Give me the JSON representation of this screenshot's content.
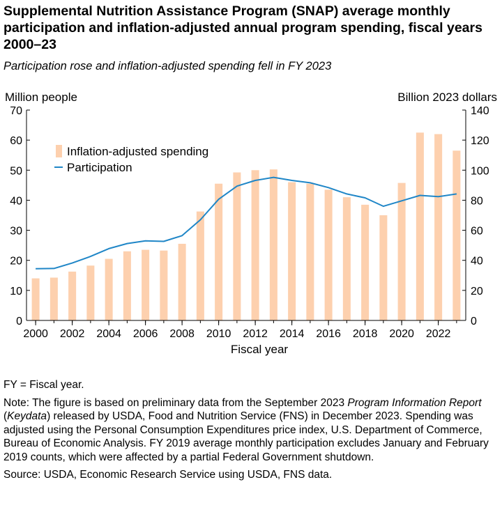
{
  "header": {
    "title": "Supplemental Nutrition Assistance Program (SNAP) average monthly participation and inflation-adjusted annual program spending, fiscal years 2000–23",
    "subtitle": "Participation rose and inflation-adjusted spending fell in FY 2023"
  },
  "footer": {
    "fy_note": "FY = Fiscal year.",
    "note_parts": [
      "Note: The figure is based on preliminary data from the September 2023 ",
      "Program Information Report",
      " (",
      "Keydata",
      ") released by USDA, Food and Nutrition Service (FNS) in December 2023. Spending was adjusted using the Personal Consumption Expenditures price index, U.S. Department of Commerce, Bureau of Economic Analysis. FY 2019 average monthly participation excludes January and February 2019 counts, which were affected by a partial Federal Government shutdown."
    ],
    "source": "Source: USDA, Economic Research Service using USDA, FNS data."
  },
  "chart_data": {
    "type": "bar+line",
    "xlabel": "Fiscal year",
    "ylabel_left": "Million people",
    "ylabel_right": "Billion 2023 dollars",
    "ylim_left": [
      0,
      70
    ],
    "ylim_right": [
      0,
      140
    ],
    "left_ticks": [
      0,
      10,
      20,
      30,
      40,
      50,
      60,
      70
    ],
    "right_ticks": [
      0,
      20,
      40,
      60,
      80,
      100,
      120,
      140
    ],
    "x_tick_labels": [
      "2000",
      "2002",
      "2004",
      "2006",
      "2008",
      "2010",
      "2012",
      "2014",
      "2016",
      "2018",
      "2020",
      "2022"
    ],
    "grid": false,
    "legend_position": "top-left",
    "colors": {
      "bars": "#fdd0ae",
      "line": "#1f86c7",
      "axis": "#000000"
    },
    "years": [
      2000,
      2001,
      2002,
      2003,
      2004,
      2005,
      2006,
      2007,
      2008,
      2009,
      2010,
      2011,
      2012,
      2013,
      2014,
      2015,
      2016,
      2017,
      2018,
      2019,
      2020,
      2021,
      2022,
      2023
    ],
    "series": [
      {
        "name": "Inflation-adjusted spending",
        "type": "bar",
        "axis": "right",
        "unit": "Billion 2023 dollars",
        "values": [
          28,
          28.5,
          32.5,
          36.5,
          41,
          46,
          47,
          46.5,
          51,
          72.5,
          91,
          98.5,
          100,
          100.5,
          92,
          91,
          87,
          82,
          77,
          70,
          91.5,
          125,
          124,
          113
        ]
      },
      {
        "name": "Participation",
        "type": "line",
        "axis": "left",
        "unit": "Million people",
        "values": [
          17.2,
          17.3,
          19.1,
          21.3,
          23.9,
          25.6,
          26.5,
          26.3,
          28.2,
          33.5,
          40.3,
          44.7,
          46.6,
          47.6,
          46.6,
          45.8,
          44.2,
          42.1,
          40.8,
          38.0,
          39.8,
          41.6,
          41.2,
          42.1
        ]
      }
    ]
  }
}
